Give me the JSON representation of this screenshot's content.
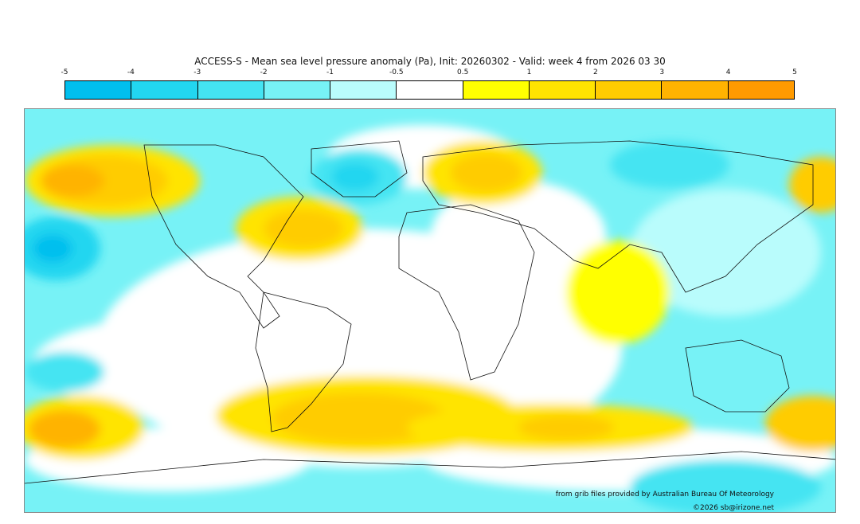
{
  "title": "ACCESS-S - Mean sea level pressure anomaly (Pa), Init: 20260302 - Valid: week 4 from 2026 03 30",
  "legend": {
    "ticks": [
      "-5",
      "-4",
      "-3",
      "-2",
      "-1",
      "-0.5",
      "0.5",
      "1",
      "2",
      "3",
      "4",
      "5"
    ],
    "colors": [
      "#00bfee",
      "#22d6f0",
      "#44e4f2",
      "#77f2f6",
      "#b9fcfc",
      "#ffffff",
      "#ffff00",
      "#ffe400",
      "#ffcc00",
      "#ffb300",
      "#ff9a00"
    ]
  },
  "map": {
    "ocean_base_color": "#77f2f6",
    "land_color": "#ffffff"
  },
  "credit": "from grib files provided by Australian Bureau Of Meteorology",
  "copyright": "©2026 sb@irizone.net"
}
